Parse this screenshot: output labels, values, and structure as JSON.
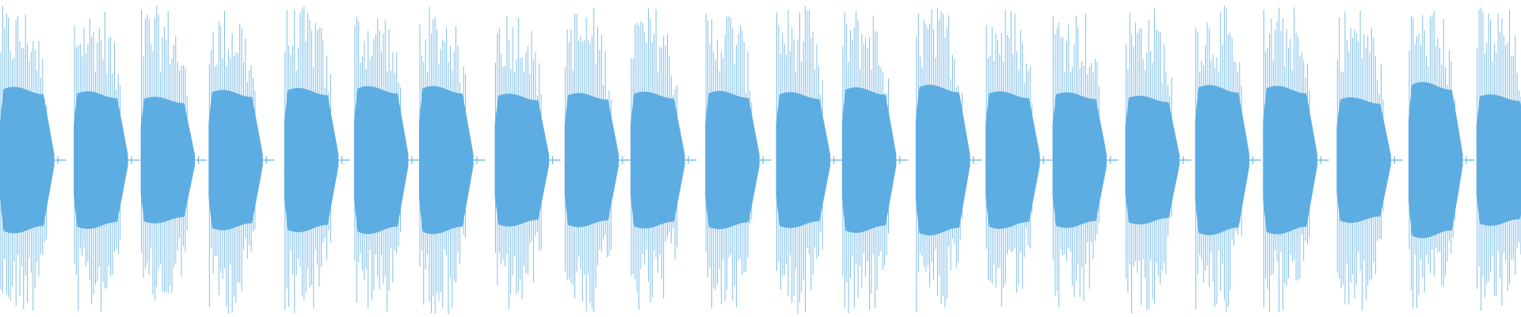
{
  "waveform": {
    "color": "#5dade2"
  }
}
